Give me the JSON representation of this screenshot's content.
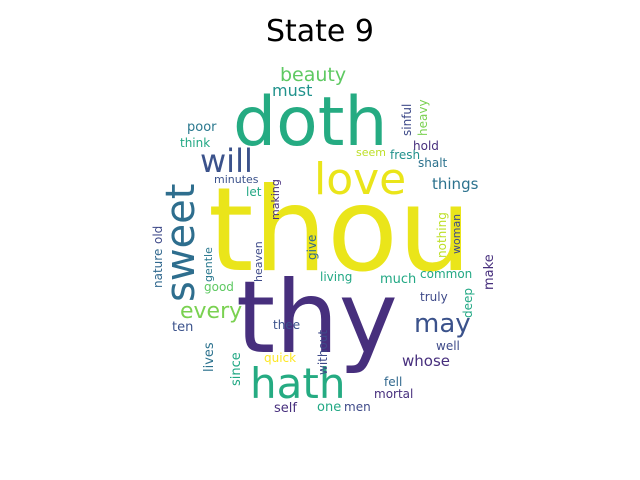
{
  "title": "State 9",
  "word_cloud": [
    {
      "text": "thou",
      "color": "#eae51a"
    },
    {
      "text": "thy",
      "color": "#472f7d"
    },
    {
      "text": "doth",
      "color": "#25ab82"
    },
    {
      "text": "sweet",
      "color": "#2e6e8e"
    },
    {
      "text": "love",
      "color": "#eae51a"
    },
    {
      "text": "hath",
      "color": "#25ab82"
    },
    {
      "text": "will",
      "color": "#3b528b"
    },
    {
      "text": "every",
      "color": "#7ad151"
    },
    {
      "text": "may",
      "color": "#3b528b"
    },
    {
      "text": "beauty",
      "color": "#5ec962"
    },
    {
      "text": "must",
      "color": "#20928c"
    },
    {
      "text": "things",
      "color": "#2c728e"
    },
    {
      "text": "whose",
      "color": "#472f7d"
    },
    {
      "text": "poor",
      "color": "#2a788e"
    },
    {
      "text": "think",
      "color": "#22a884"
    },
    {
      "text": "minutes",
      "color": "#3b528b"
    },
    {
      "text": "let",
      "color": "#22a884"
    },
    {
      "text": "making",
      "color": "#472f7d"
    },
    {
      "text": "seem",
      "color": "#bddf26"
    },
    {
      "text": "fresh",
      "color": "#21918c"
    },
    {
      "text": "shalt",
      "color": "#2c728e"
    },
    {
      "text": "hold",
      "color": "#472f7d"
    },
    {
      "text": "sinful",
      "color": "#3e4a89"
    },
    {
      "text": "heavy",
      "color": "#7ad151"
    },
    {
      "text": "nothing",
      "color": "#bddf26"
    },
    {
      "text": "woman",
      "color": "#3e4a89"
    },
    {
      "text": "old",
      "color": "#3e4a89"
    },
    {
      "text": "nature",
      "color": "#31688e"
    },
    {
      "text": "gentle",
      "color": "#2a788e"
    },
    {
      "text": "heaven",
      "color": "#3e4a89"
    },
    {
      "text": "give",
      "color": "#31688e"
    },
    {
      "text": "good",
      "color": "#5ec962"
    },
    {
      "text": "living",
      "color": "#22a884"
    },
    {
      "text": "much",
      "color": "#22a884"
    },
    {
      "text": "common",
      "color": "#22a884"
    },
    {
      "text": "make",
      "color": "#472f7d"
    },
    {
      "text": "ten",
      "color": "#3b528b"
    },
    {
      "text": "truly",
      "color": "#3e4a89"
    },
    {
      "text": "deep",
      "color": "#22a884"
    },
    {
      "text": "lives",
      "color": "#2c728e"
    },
    {
      "text": "since",
      "color": "#22a884"
    },
    {
      "text": "thee",
      "color": "#3b528b"
    },
    {
      "text": "without",
      "color": "#3e4a89"
    },
    {
      "text": "quick",
      "color": "#fde725"
    },
    {
      "text": "well",
      "color": "#3e4a89"
    },
    {
      "text": "fell",
      "color": "#31688e"
    },
    {
      "text": "mortal",
      "color": "#472f7d"
    },
    {
      "text": "self",
      "color": "#472f7d"
    },
    {
      "text": "one",
      "color": "#22a884"
    },
    {
      "text": "men",
      "color": "#3e4a89"
    }
  ]
}
